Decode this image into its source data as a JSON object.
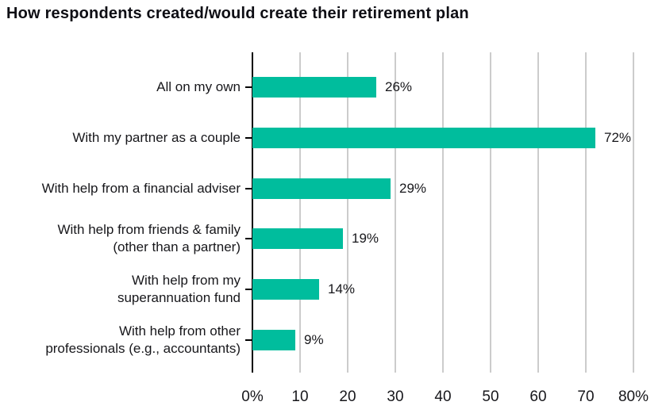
{
  "chart_data": {
    "type": "bar",
    "orientation": "horizontal",
    "title": "How respondents created/would create their retirement plan",
    "categories": [
      "All on my own",
      "With my partner as a couple",
      "With help from a financial adviser",
      "With help from friends & family (other than a partner)",
      "With help from my superannuation fund",
      "With help from other professionals (e.g., accountants)"
    ],
    "values": [
      26,
      72,
      29,
      19,
      14,
      9
    ],
    "bars": [
      {
        "label_lines": [
          "All on my own"
        ],
        "value": 26,
        "data_label": "26%"
      },
      {
        "label_lines": [
          "With my partner as a couple"
        ],
        "value": 72,
        "data_label": "72%"
      },
      {
        "label_lines": [
          "With help from a financial adviser"
        ],
        "value": 29,
        "data_label": "29%"
      },
      {
        "label_lines": [
          "With help from friends & family",
          "(other than a partner)"
        ],
        "value": 19,
        "data_label": "19%"
      },
      {
        "label_lines": [
          "With help from my",
          "superannuation fund"
        ],
        "value": 14,
        "data_label": "14%"
      },
      {
        "label_lines": [
          "With help from other",
          "professionals (e.g., accountants)"
        ],
        "value": 9,
        "data_label": "9%"
      }
    ],
    "x_axis": {
      "min": 0,
      "max": 80,
      "tick_values": [
        0,
        10,
        20,
        30,
        40,
        50,
        60,
        70,
        80
      ],
      "tick_labels": [
        "0%",
        "10",
        "20",
        "30",
        "40",
        "50",
        "60",
        "70",
        "80%"
      ]
    },
    "grid": true,
    "legend": false,
    "colors": {
      "bar": "#00bd9d",
      "grid": "#cccccc",
      "axis": "#000000",
      "text": "#17171b",
      "title": "#0e0e14"
    }
  }
}
